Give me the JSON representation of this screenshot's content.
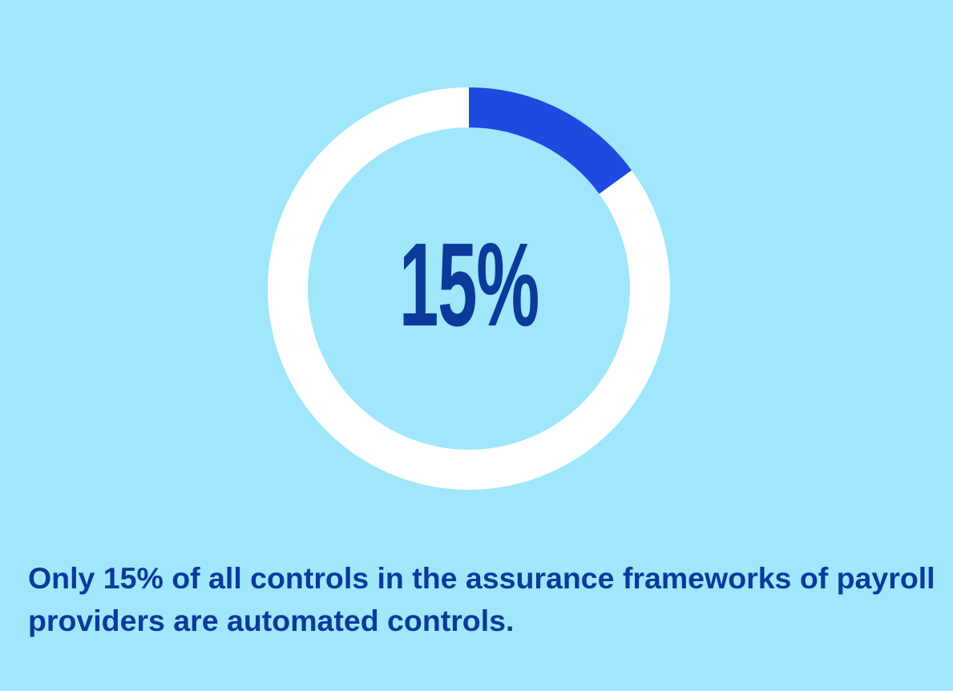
{
  "chart_data": {
    "type": "pie",
    "variant": "donut",
    "values": [
      15,
      85
    ],
    "colors": [
      "#1f4ae0",
      "#ffffff"
    ],
    "center_label": "15%",
    "caption": "Only 15% of all controls in the assurance frameworks of payroll providers are automated controls."
  },
  "colors": {
    "background": "#a0e7fc",
    "text": "#0a3a9a"
  }
}
